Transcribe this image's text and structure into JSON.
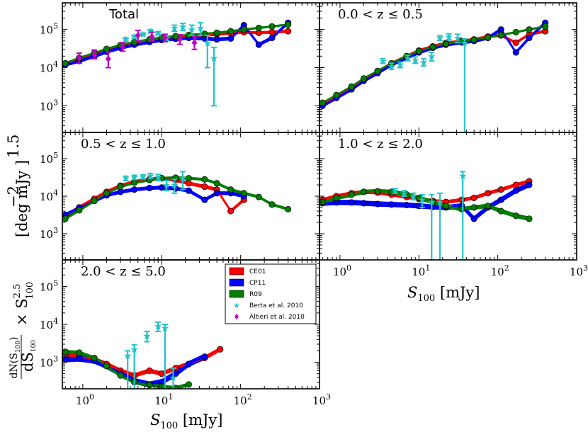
{
  "chart_data": {
    "type": "scatter",
    "subtype": "differential number counts, log-log, 5 redshift panels",
    "xlabel": "S_100 [mJy]",
    "ylabel": "dN(S100)/dS100 × S100^2.5 [deg^-2 mJy^1.5]",
    "x_ticks": [
      "10^0",
      "10^1",
      "10^2",
      "10^3"
    ],
    "y_ticks": [
      "10^3",
      "10^4",
      "10^5"
    ],
    "xlim": [
      0.55,
      1000
    ],
    "ylim": [
      200,
      500000
    ],
    "legend": {
      "position": "inside-panel-5-top-right",
      "entries": [
        {
          "name": "CE01",
          "color": "#ff0000",
          "kind": "band"
        },
        {
          "name": "CP11",
          "color": "#0000ff",
          "kind": "band"
        },
        {
          "name": "R09",
          "color": "#007f00",
          "kind": "band"
        },
        {
          "name": "Berta et al. 2010",
          "color": "#22c4c8",
          "kind": "star"
        },
        {
          "name": "Altieri et al. 2010",
          "color": "#c000c0",
          "kind": "diamond"
        }
      ]
    },
    "panels": [
      {
        "label": "Total",
        "label_style": "sans",
        "series": [
          {
            "name": "CE01",
            "x": [
              0.6,
              0.9,
              1.4,
              2.0,
              3.0,
              4.5,
              7.0,
              10,
              15,
              22,
              35,
              50,
              75,
              110,
              170,
              250,
              400
            ],
            "y": [
              13000,
              17000,
              23000,
              30000,
              38000,
              45000,
              52000,
              58000,
              62000,
              66000,
              70000,
              75000,
              80000,
              85000,
              82000,
              85000,
              90000
            ],
            "halfwidth_dex": 0.04
          },
          {
            "name": "CP11",
            "x": [
              0.6,
              0.9,
              1.4,
              2.0,
              3.0,
              4.5,
              7.0,
              10,
              15,
              22,
              35,
              50,
              75,
              110,
              170,
              250,
              400
            ],
            "y": [
              12000,
              15000,
              20000,
              26000,
              33000,
              40000,
              47000,
              53000,
              57000,
              60000,
              58000,
              55000,
              58000,
              130000,
              40000,
              60000,
              150000
            ],
            "halfwidth_dex": 0.05
          },
          {
            "name": "R09",
            "x": [
              0.6,
              0.9,
              1.4,
              2.0,
              3.0,
              4.5,
              7.0,
              10,
              15,
              22,
              35,
              50,
              75,
              110,
              170,
              250,
              400
            ],
            "y": [
              13000,
              18000,
              24000,
              31000,
              39000,
              47000,
              55000,
              62000,
              67000,
              72000,
              77000,
              82000,
              90000,
              100000,
              110000,
              120000,
              135000
            ],
            "halfwidth_dex": 0.03
          },
          {
            "name": "Berta et al. 2010",
            "x": [
              3.5,
              4.5,
              5.8,
              7.2,
              9.0,
              11.5,
              14.5,
              18.5,
              24,
              31,
              38,
              46
            ],
            "y": [
              55000,
              65000,
              75000,
              90000,
              80000,
              60000,
              110000,
              120000,
              100000,
              110000,
              45000,
              18000
            ],
            "err_lo": [
              6000,
              6000,
              6000,
              8000,
              8000,
              8000,
              20000,
              25000,
              30000,
              40000,
              35000,
              17000
            ],
            "err_hi": [
              6000,
              6000,
              6000,
              8000,
              8000,
              8000,
              20000,
              25000,
              30000,
              40000,
              25000,
              16000
            ]
          },
          {
            "name": "Altieri et al. 2010",
            "x": [
              0.9,
              1.4,
              2.1,
              3.2,
              5.0,
              7.5,
              11,
              17,
              26
            ],
            "y": [
              18000,
              22000,
              17000,
              35000,
              70000,
              65000,
              60000,
              55000,
              45000
            ],
            "err_lo": [
              5000,
              5000,
              7000,
              8000,
              20000,
              15000,
              12000,
              14000,
              15000
            ],
            "err_hi": [
              6000,
              7000,
              9000,
              10000,
              25000,
              20000,
              15000,
              18000,
              20000
            ]
          }
        ]
      },
      {
        "label": "0.0 < z ≤ 0.5",
        "label_style": "serif",
        "series": [
          {
            "name": "CE01",
            "x": [
              0.6,
              0.9,
              1.4,
              2.0,
              3.0,
              4.5,
              7.0,
              10,
              15,
              22,
              35,
              50,
              75,
              110,
              170,
              250,
              400
            ],
            "y": [
              1100,
              1800,
              3000,
              5000,
              8000,
              13000,
              20000,
              28000,
              36000,
              44000,
              50000,
              55000,
              65000,
              70000,
              45000,
              75000,
              90000
            ],
            "halfwidth_dex": 0.04
          },
          {
            "name": "CP11",
            "x": [
              0.6,
              0.9,
              1.4,
              2.0,
              3.0,
              4.5,
              7.0,
              10,
              15,
              22,
              35,
              50,
              75,
              110,
              170,
              250,
              400
            ],
            "y": [
              1000,
              1600,
              2700,
              4500,
              7200,
              12000,
              18000,
              25000,
              33000,
              40000,
              46000,
              50000,
              60000,
              100000,
              25000,
              60000,
              150000
            ],
            "halfwidth_dex": 0.05
          },
          {
            "name": "R09",
            "x": [
              0.6,
              0.9,
              1.4,
              2.0,
              3.0,
              4.5,
              7.0,
              10,
              15,
              22,
              35,
              50,
              75,
              110,
              170,
              250,
              400
            ],
            "y": [
              1200,
              1900,
              3200,
              5200,
              8200,
              13000,
              20000,
              27000,
              35000,
              42000,
              49000,
              54000,
              62000,
              72000,
              85000,
              100000,
              120000
            ],
            "halfwidth_dex": 0.03
          },
          {
            "name": "Berta et al. 2010",
            "x": [
              3.5,
              4.5,
              5.8,
              7.2,
              9.0,
              11.5,
              14.5,
              18.5,
              24,
              31,
              38
            ],
            "y": [
              15000,
              11000,
              12000,
              18000,
              16000,
              14000,
              20000,
              60000,
              65000,
              60000,
              45000
            ],
            "err_lo": [
              2000,
              2000,
              2000,
              3000,
              3000,
              3000,
              5000,
              8000,
              12000,
              15000,
              44800
            ],
            "err_hi": [
              2000,
              2000,
              2000,
              3000,
              3000,
              3000,
              5000,
              8000,
              12000,
              15000,
              12000
            ]
          }
        ]
      },
      {
        "label": "0.5 < z ≤ 1.0",
        "label_style": "serif",
        "series": [
          {
            "name": "CE01",
            "x": [
              0.6,
              0.9,
              1.4,
              2.0,
              3.0,
              4.5,
              7.0,
              10,
              15,
              22,
              35,
              50,
              75,
              110
            ],
            "y": [
              3000,
              5000,
              8500,
              13000,
              19000,
              24000,
              28000,
              30000,
              27000,
              22000,
              18000,
              15000,
              4000,
              8000
            ],
            "halfwidth_dex": 0.05
          },
          {
            "name": "CP11",
            "x": [
              0.6,
              0.9,
              1.4,
              2.0,
              3.0,
              4.5,
              7.0,
              10,
              15,
              22,
              35,
              50,
              75,
              110
            ],
            "y": [
              3200,
              4800,
              7500,
              10500,
              13000,
              15000,
              16500,
              17000,
              16000,
              14000,
              8000,
              12000,
              12000,
              10000
            ],
            "halfwidth_dex": 0.05
          },
          {
            "name": "R09",
            "x": [
              0.6,
              0.9,
              1.4,
              2.0,
              3.0,
              4.5,
              7.0,
              10,
              15,
              22,
              35,
              50,
              75,
              110,
              170,
              250,
              400
            ],
            "y": [
              2500,
              4200,
              7500,
              12000,
              18000,
              23000,
              27000,
              30000,
              31000,
              30000,
              28000,
              22000,
              15000,
              12000,
              9500,
              6000,
              4500
            ],
            "halfwidth_dex": 0.04
          },
          {
            "name": "Berta et al. 2010",
            "x": [
              3.5,
              4.5,
              5.8,
              7.2,
              9.0,
              11.5,
              14.5,
              18.5
            ],
            "y": [
              30000,
              32000,
              33000,
              35000,
              32000,
              20000,
              20000,
              30000
            ],
            "err_lo": [
              4000,
              4000,
              4000,
              5000,
              6000,
              6000,
              8000,
              15000
            ],
            "err_hi": [
              4000,
              4000,
              4000,
              5000,
              6000,
              6000,
              8000,
              15000
            ]
          }
        ]
      },
      {
        "label": "1.0 < z ≤ 2.0",
        "label_style": "serif",
        "series": [
          {
            "name": "CE01",
            "x": [
              0.6,
              0.9,
              1.4,
              2.0,
              3.0,
              4.5,
              7.0,
              10,
              15,
              22,
              35,
              50,
              75,
              110,
              170,
              250
            ],
            "y": [
              8000,
              10000,
              12000,
              13000,
              12500,
              11000,
              9500,
              8500,
              7500,
              7000,
              8000,
              9000,
              12000,
              15000,
              20000,
              25000
            ],
            "halfwidth_dex": 0.05
          },
          {
            "name": "CP11",
            "x": [
              0.6,
              0.9,
              1.4,
              2.0,
              3.0,
              4.5,
              7.0,
              10,
              15,
              22,
              35,
              50,
              75,
              110,
              170,
              250
            ],
            "y": [
              6500,
              6800,
              6800,
              6500,
              6200,
              6000,
              5800,
              5500,
              5200,
              5000,
              5500,
              2500,
              5000,
              8000,
              14000,
              20000
            ],
            "halfwidth_dex": 0.07
          },
          {
            "name": "R09",
            "x": [
              0.6,
              0.9,
              1.4,
              2.0,
              3.0,
              4.5,
              7.0,
              10,
              15,
              22,
              35,
              50,
              75,
              110,
              170,
              250
            ],
            "y": [
              7000,
              9000,
              11000,
              13000,
              13500,
              13000,
              11000,
              9000,
              7000,
              5500,
              4500,
              5000,
              5500,
              4000,
              3000,
              2500
            ],
            "halfwidth_dex": 0.06
          },
          {
            "name": "Berta et al. 2010",
            "x": [
              5.0,
              6.5,
              8.5,
              11,
              14.5,
              18.5,
              36
            ],
            "y": [
              14000,
              12000,
              10000,
              8000,
              7000,
              7000,
              35000
            ],
            "err_lo": [
              2000,
              2000,
              2000,
              3000,
              6800,
              6800,
              34800
            ],
            "err_hi": [
              2000,
              2000,
              2000,
              3000,
              4000,
              5000,
              10000
            ]
          }
        ]
      },
      {
        "label": "2.0 < z ≤ 5.0",
        "label_style": "serif",
        "series": [
          {
            "name": "CE01",
            "x": [
              0.6,
              0.9,
              1.4,
              2.0,
              3.0,
              4.5,
              7.0,
              10,
              15,
              22,
              35,
              55
            ],
            "y": [
              1500,
              1400,
              1200,
              900,
              600,
              450,
              600,
              500,
              700,
              900,
              1300,
              2200
            ],
            "halfwidth_dex": 0.06
          },
          {
            "name": "CP11",
            "x": [
              0.6,
              0.9,
              1.4,
              2.0,
              3.0,
              4.5,
              7.0,
              10,
              15,
              22,
              35
            ],
            "y": [
              1200,
              1250,
              1100,
              800,
              500,
              320,
              260,
              300,
              500,
              900,
              1400
            ],
            "halfwidth_dex": 0.08
          },
          {
            "name": "R09",
            "x": [
              0.6,
              0.9,
              1.4,
              2.0,
              3.0,
              4.5,
              7.0,
              10,
              15,
              22
            ],
            "y": [
              1900,
              1800,
              1300,
              800,
              450,
              300,
              250,
              230,
              210,
              260
            ],
            "halfwidth_dex": 0.05
          },
          {
            "name": "Berta et al. 2010",
            "x": [
              3.7,
              4.5,
              6.5,
              9.0,
              11,
              14
            ],
            "y": [
              1500,
              2200,
              5000,
              9000,
              8000,
              400
            ],
            "err_lo": [
              1400,
              2000,
              1500,
              2500,
              7800,
              300
            ],
            "err_hi": [
              500,
              700,
              1500,
              2500,
              2000,
              300
            ]
          }
        ]
      }
    ]
  },
  "labels": {
    "xlabel_symbol": "S",
    "xlabel_sub": "100",
    "xlabel_unit": " [mJy]",
    "ylabel_unit": "[deg  mJy  ]",
    "ylabel_unit_sup1": "−2",
    "ylabel_unit_sup2": "1.5",
    "ylabel_times": "× S",
    "ylabel_times_sup": "2.5",
    "ylabel_times_sub": "100",
    "ylabel_frac_num": "dN(S",
    "ylabel_frac_num_sub": "100",
    "ylabel_frac_num_close": ")",
    "ylabel_frac_den": "dS",
    "ylabel_frac_den_sub": "100",
    "tick_base": "10"
  }
}
